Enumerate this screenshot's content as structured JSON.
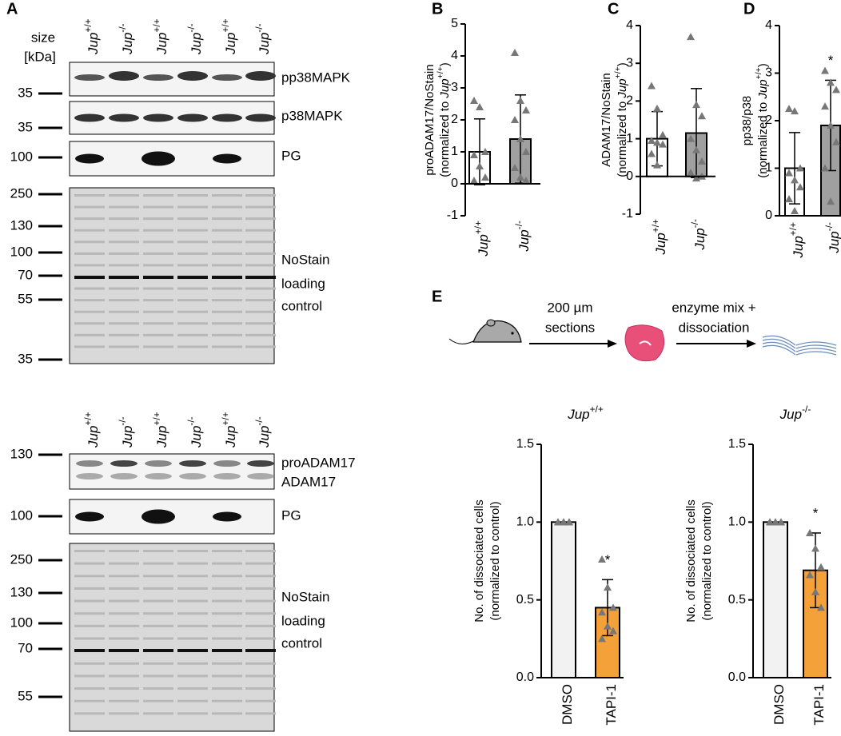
{
  "chart_data": [
    {
      "type": "bar",
      "panel": "B",
      "ylabel": [
        [
          {
            "text": "proADAM17/NoStain"
          }
        ],
        [
          {
            "text": "(normalized to "
          },
          {
            "text": "Jup",
            "italic": true
          },
          {
            "text": "+/+",
            "sup": true
          },
          {
            "text": ")"
          }
        ]
      ],
      "categories": [
        {
          "name": "Jup",
          "sup": "+/+"
        },
        {
          "name": "Jup",
          "sup": "-/-"
        }
      ],
      "values": [
        1.0,
        1.4
      ],
      "errors": [
        1.03,
        1.38
      ],
      "points": [
        [
          2.6,
          2.4,
          1.0,
          0.9,
          0.55,
          0.2,
          0.1
        ],
        [
          4.1,
          2.6,
          2.3,
          2.0,
          1.4,
          1.0,
          0.5,
          0.2,
          0.1
        ]
      ],
      "colors": [
        "#ffffff",
        "#a0a0a0"
      ],
      "point_color": "#777777",
      "ylim": [
        -1,
        5
      ],
      "yticks": [
        -1,
        0,
        1,
        2,
        3,
        4,
        5
      ]
    },
    {
      "type": "bar",
      "panel": "C",
      "ylabel": [
        [
          {
            "text": "ADAM17/NoStain"
          }
        ],
        [
          {
            "text": "(normalized to "
          },
          {
            "text": "Jup",
            "italic": true
          },
          {
            "text": "+/+",
            "sup": true
          },
          {
            "text": ")"
          }
        ]
      ],
      "categories": [
        {
          "name": "Jup",
          "sup": "+/+"
        },
        {
          "name": "Jup",
          "sup": "-/-"
        }
      ],
      "values": [
        1.0,
        1.15
      ],
      "errors": [
        0.72,
        1.18
      ],
      "points": [
        [
          2.4,
          1.8,
          1.1,
          0.95,
          0.9,
          0.85,
          0.6,
          0.3
        ],
        [
          3.7,
          1.9,
          1.6,
          1.0,
          0.7,
          0.4,
          0.1,
          -0.05,
          0.0
        ]
      ],
      "colors": [
        "#ffffff",
        "#a0a0a0"
      ],
      "point_color": "#777777",
      "ylim": [
        -1,
        4
      ],
      "yticks": [
        -1,
        0,
        1,
        2,
        3,
        4
      ]
    },
    {
      "type": "bar",
      "panel": "D",
      "ylabel": [
        [
          {
            "text": "pp38/p38"
          }
        ],
        [
          {
            "text": "(normalized to "
          },
          {
            "text": "Jup",
            "italic": true
          },
          {
            "text": "+/+",
            "sup": true
          },
          {
            "text": ")"
          }
        ]
      ],
      "categories": [
        {
          "name": "Jup",
          "sup": "+/+"
        },
        {
          "name": "Jup",
          "sup": "-/-"
        }
      ],
      "values": [
        1.0,
        1.9
      ],
      "errors": [
        0.75,
        0.95
      ],
      "points": [
        [
          2.25,
          2.2,
          1.0,
          0.9,
          0.75,
          0.6,
          0.35,
          0.1
        ],
        [
          3.05,
          2.8,
          2.65,
          2.3,
          1.9,
          1.55,
          1.0,
          0.3
        ]
      ],
      "colors": [
        "#ffffff",
        "#a0a0a0"
      ],
      "point_color": "#777777",
      "annotation": {
        "text": "*",
        "category": 1
      },
      "ylim": [
        0,
        4
      ],
      "yticks": [
        0,
        1,
        2,
        3,
        4
      ]
    },
    {
      "type": "bar",
      "title": [
        {
          "text": "Jup",
          "italic": true
        },
        {
          "text": "+/+",
          "sup": true
        }
      ],
      "ylabel": [
        [
          {
            "text": "No. of dissociated cells"
          }
        ],
        [
          {
            "text": "(normalized to control)"
          }
        ]
      ],
      "categories": [
        {
          "name": "DMSO"
        },
        {
          "name": "TAPI-1"
        }
      ],
      "values": [
        1.0,
        0.45
      ],
      "errors": [
        0,
        0.18
      ],
      "points": [
        [
          1.0,
          1.0,
          1.0,
          1.0,
          1.0,
          1.0
        ],
        [
          0.76,
          0.58,
          0.45,
          0.42,
          0.33,
          0.3,
          0.25
        ]
      ],
      "colors": [
        "#f2f2f2",
        "#f5a13a"
      ],
      "point_color": "#777777",
      "annotation": {
        "text": "*",
        "category": 1
      },
      "ylim": [
        0,
        1.5
      ],
      "yticks": [
        {
          "value": 0,
          "label": "0.0"
        },
        0.5,
        {
          "value": 1,
          "label": "1.0"
        },
        1.5
      ]
    },
    {
      "type": "bar",
      "title": [
        {
          "text": "Jup",
          "italic": true
        },
        {
          "text": "-/-",
          "sup": true
        }
      ],
      "ylabel": [
        [
          {
            "text": "No. of dissociated cells"
          }
        ],
        [
          {
            "text": "(normalized to control)"
          }
        ]
      ],
      "categories": [
        {
          "name": "DMSO"
        },
        {
          "name": "TAPI-1"
        }
      ],
      "values": [
        1.0,
        0.69
      ],
      "errors": [
        0,
        0.24
      ],
      "points": [
        [
          1.0,
          1.0,
          1.0,
          1.0,
          1.0,
          1.0
        ],
        [
          0.93,
          0.83,
          0.71,
          0.66,
          0.55,
          0.45
        ]
      ],
      "colors": [
        "#f2f2f2",
        "#f5a13a"
      ],
      "point_color": "#777777",
      "annotation": {
        "text": "*",
        "category": 1
      },
      "ylim": [
        0,
        1.5
      ],
      "yticks": [
        {
          "value": 0,
          "label": "0.0"
        },
        0.5,
        {
          "value": 1,
          "label": "1.0"
        },
        1.5
      ]
    }
  ],
  "figure": {
    "panel_a": "A",
    "panel_e": "E",
    "size_label": [
      "size",
      "[kDa]"
    ],
    "blots": [
      {
        "lanes": [
          {
            "name": "Jup",
            "sup": "+/+"
          },
          {
            "name": "Jup",
            "sup": "-/-"
          },
          {
            "name": "Jup",
            "sup": "+/+"
          },
          {
            "name": "Jup",
            "sup": "-/-"
          },
          {
            "name": "Jup",
            "sup": "+/+"
          },
          {
            "name": "Jup",
            "sup": "-/-"
          }
        ],
        "rows": [
          {
            "label": [
              "pp38MAPK"
            ],
            "markers": [
              "35"
            ]
          },
          {
            "label": [
              "p38MAPK"
            ],
            "markers": [
              "35"
            ]
          },
          {
            "label": [
              "PG"
            ],
            "markers": [
              "100"
            ]
          },
          {
            "label": [
              "NoStain",
              "loading",
              "control"
            ],
            "markers": [
              "250",
              "130",
              "100",
              "70",
              "55",
              "35"
            ]
          }
        ]
      },
      {
        "lanes": [
          {
            "name": "Jup",
            "sup": "+/+"
          },
          {
            "name": "Jup",
            "sup": "-/-"
          },
          {
            "name": "Jup",
            "sup": "+/+"
          },
          {
            "name": "Jup",
            "sup": "-/-"
          },
          {
            "name": "Jup",
            "sup": "+/+"
          },
          {
            "name": "Jup",
            "sup": "-/-"
          }
        ],
        "rows": [
          {
            "label": [
              "proADAM17",
              "ADAM17"
            ],
            "markers": [
              "130"
            ]
          },
          {
            "label": [
              "PG"
            ],
            "markers": [
              "100"
            ]
          },
          {
            "label": [
              "NoStain",
              "loading",
              "control"
            ],
            "markers": [
              "250",
              "130",
              "100",
              "70",
              "55"
            ]
          }
        ]
      }
    ],
    "schematic": {
      "step1": [
        "200 µm",
        "sections"
      ],
      "step2": [
        "enzyme mix +",
        "dissociation"
      ]
    }
  }
}
